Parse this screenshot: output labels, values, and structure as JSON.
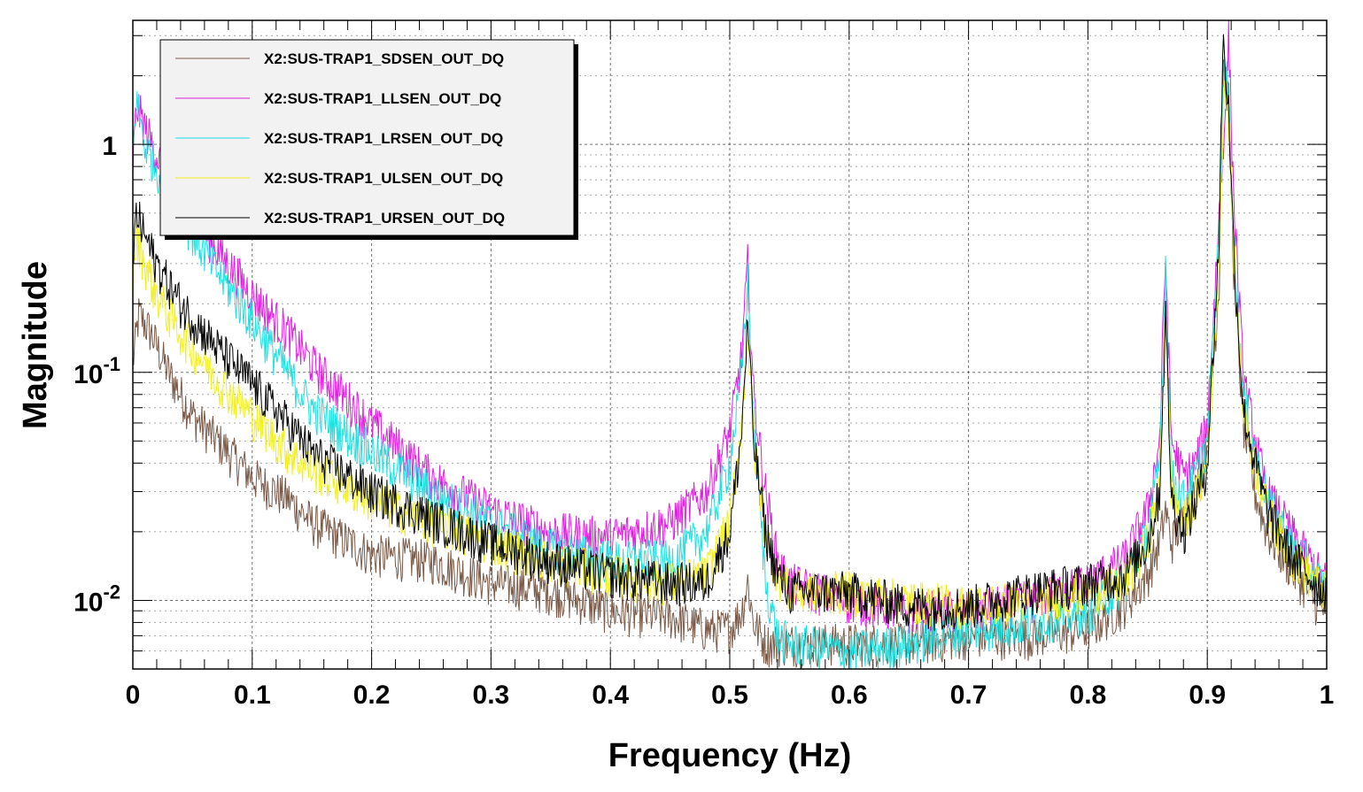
{
  "chart_data": {
    "type": "line",
    "xlabel": "Frequency (Hz)",
    "ylabel": "Magnitude",
    "xlim": [
      0,
      1
    ],
    "ylim": [
      0.005,
      3.5
    ],
    "yscale": "log",
    "grid": true,
    "legend_position": "top-left",
    "x_ticks": [
      {
        "value": 0,
        "label": "0"
      },
      {
        "value": 0.1,
        "label": "0.1"
      },
      {
        "value": 0.2,
        "label": "0.2"
      },
      {
        "value": 0.3,
        "label": "0.3"
      },
      {
        "value": 0.4,
        "label": "0.4"
      },
      {
        "value": 0.5,
        "label": "0.5"
      },
      {
        "value": 0.6,
        "label": "0.6"
      },
      {
        "value": 0.7,
        "label": "0.7"
      },
      {
        "value": 0.8,
        "label": "0.8"
      },
      {
        "value": 0.9,
        "label": "0.9"
      },
      {
        "value": 1,
        "label": "1"
      }
    ],
    "y_ticks": [
      {
        "value": 0.01,
        "base": "10",
        "exp": "-2"
      },
      {
        "value": 0.1,
        "base": "10",
        "exp": "-1"
      },
      {
        "value": 1,
        "base": "1",
        "exp": ""
      }
    ],
    "series": [
      {
        "name": "X2:SUS-TRAP1_SDSEN_OUT_DQ",
        "color": "#7a5a48",
        "x": [
          0,
          0.005,
          0.015,
          0.03,
          0.05,
          0.08,
          0.1,
          0.13,
          0.15,
          0.2,
          0.25,
          0.3,
          0.35,
          0.4,
          0.45,
          0.48,
          0.5,
          0.51,
          0.515,
          0.52,
          0.53,
          0.55,
          0.6,
          0.65,
          0.7,
          0.75,
          0.8,
          0.83,
          0.85,
          0.86,
          0.865,
          0.87,
          0.88,
          0.89,
          0.9,
          0.91,
          0.913,
          0.918,
          0.922,
          0.93,
          0.94,
          0.95,
          0.97,
          0.99,
          1
        ],
        "y": [
          0.11,
          0.18,
          0.15,
          0.1,
          0.065,
          0.045,
          0.035,
          0.028,
          0.022,
          0.016,
          0.015,
          0.012,
          0.011,
          0.009,
          0.0085,
          0.0075,
          0.0075,
          0.009,
          0.012,
          0.008,
          0.0065,
          0.0065,
          0.0065,
          0.0065,
          0.007,
          0.007,
          0.0075,
          0.0095,
          0.013,
          0.018,
          0.025,
          0.018,
          0.023,
          0.03,
          0.05,
          0.25,
          2.5,
          1.5,
          0.3,
          0.06,
          0.03,
          0.02,
          0.014,
          0.01,
          0.009
        ]
      },
      {
        "name": "X2:SUS-TRAP1_LLSEN_OUT_DQ",
        "color": "#e020e0",
        "x": [
          0,
          0.003,
          0.01,
          0.02,
          0.04,
          0.07,
          0.1,
          0.13,
          0.15,
          0.2,
          0.25,
          0.3,
          0.35,
          0.4,
          0.45,
          0.48,
          0.5,
          0.51,
          0.515,
          0.52,
          0.53,
          0.54,
          0.55,
          0.6,
          0.65,
          0.7,
          0.75,
          0.8,
          0.83,
          0.85,
          0.86,
          0.865,
          0.87,
          0.88,
          0.89,
          0.9,
          0.91,
          0.915,
          0.918,
          0.922,
          0.93,
          0.94,
          0.95,
          0.97,
          0.99,
          1
        ],
        "y": [
          0.8,
          1.5,
          1.2,
          0.9,
          0.6,
          0.35,
          0.22,
          0.15,
          0.11,
          0.06,
          0.035,
          0.025,
          0.02,
          0.019,
          0.022,
          0.03,
          0.055,
          0.12,
          0.3,
          0.08,
          0.03,
          0.015,
          0.012,
          0.01,
          0.009,
          0.009,
          0.01,
          0.012,
          0.015,
          0.025,
          0.05,
          0.33,
          0.05,
          0.035,
          0.04,
          0.06,
          0.5,
          1.5,
          3.0,
          0.6,
          0.1,
          0.05,
          0.03,
          0.02,
          0.014,
          0.012
        ]
      },
      {
        "name": "X2:SUS-TRAP1_LRSEN_OUT_DQ",
        "color": "#20e0e0",
        "x": [
          0,
          0.003,
          0.01,
          0.02,
          0.04,
          0.07,
          0.1,
          0.13,
          0.15,
          0.2,
          0.25,
          0.3,
          0.35,
          0.4,
          0.45,
          0.48,
          0.5,
          0.51,
          0.515,
          0.52,
          0.53,
          0.54,
          0.55,
          0.6,
          0.65,
          0.7,
          0.75,
          0.8,
          0.83,
          0.85,
          0.86,
          0.865,
          0.87,
          0.88,
          0.89,
          0.9,
          0.91,
          0.914,
          0.918,
          0.922,
          0.93,
          0.94,
          0.95,
          0.97,
          0.99,
          1
        ],
        "y": [
          0.9,
          1.6,
          1.0,
          0.8,
          0.5,
          0.28,
          0.17,
          0.1,
          0.07,
          0.045,
          0.03,
          0.022,
          0.017,
          0.015,
          0.015,
          0.02,
          0.04,
          0.1,
          0.25,
          0.06,
          0.012,
          0.007,
          0.0065,
          0.006,
          0.0065,
          0.0075,
          0.008,
          0.009,
          0.012,
          0.02,
          0.04,
          0.3,
          0.035,
          0.028,
          0.035,
          0.05,
          0.4,
          2.8,
          1.5,
          0.4,
          0.08,
          0.045,
          0.028,
          0.018,
          0.013,
          0.011
        ]
      },
      {
        "name": "X2:SUS-TRAP1_ULSEN_OUT_DQ",
        "color": "#f0f020",
        "x": [
          0,
          0.003,
          0.01,
          0.02,
          0.04,
          0.07,
          0.1,
          0.13,
          0.15,
          0.2,
          0.25,
          0.3,
          0.35,
          0.4,
          0.45,
          0.48,
          0.5,
          0.51,
          0.515,
          0.52,
          0.53,
          0.54,
          0.55,
          0.6,
          0.65,
          0.7,
          0.75,
          0.8,
          0.83,
          0.85,
          0.86,
          0.865,
          0.87,
          0.88,
          0.89,
          0.9,
          0.91,
          0.914,
          0.918,
          0.922,
          0.93,
          0.94,
          0.95,
          0.97,
          0.99,
          1
        ],
        "y": [
          0.25,
          0.4,
          0.3,
          0.22,
          0.15,
          0.095,
          0.065,
          0.045,
          0.038,
          0.028,
          0.022,
          0.018,
          0.015,
          0.013,
          0.012,
          0.013,
          0.022,
          0.06,
          0.15,
          0.05,
          0.02,
          0.013,
          0.011,
          0.011,
          0.01,
          0.0095,
          0.01,
          0.011,
          0.012,
          0.018,
          0.03,
          0.2,
          0.03,
          0.022,
          0.028,
          0.04,
          0.3,
          2.0,
          1.3,
          0.35,
          0.07,
          0.04,
          0.025,
          0.016,
          0.012,
          0.011
        ]
      },
      {
        "name": "X2:SUS-TRAP1_URSEN_OUT_DQ",
        "color": "#000000",
        "x": [
          0,
          0.003,
          0.01,
          0.02,
          0.04,
          0.07,
          0.1,
          0.13,
          0.15,
          0.2,
          0.25,
          0.3,
          0.35,
          0.4,
          0.45,
          0.48,
          0.5,
          0.51,
          0.515,
          0.52,
          0.53,
          0.54,
          0.55,
          0.6,
          0.65,
          0.7,
          0.75,
          0.8,
          0.83,
          0.85,
          0.86,
          0.865,
          0.87,
          0.88,
          0.89,
          0.9,
          0.91,
          0.913,
          0.918,
          0.922,
          0.93,
          0.94,
          0.95,
          0.97,
          0.99,
          1
        ],
        "y": [
          0.3,
          0.5,
          0.4,
          0.3,
          0.2,
          0.13,
          0.09,
          0.06,
          0.045,
          0.03,
          0.023,
          0.018,
          0.015,
          0.013,
          0.012,
          0.012,
          0.02,
          0.055,
          0.17,
          0.05,
          0.02,
          0.013,
          0.011,
          0.011,
          0.0095,
          0.0095,
          0.011,
          0.012,
          0.013,
          0.018,
          0.03,
          0.18,
          0.028,
          0.02,
          0.027,
          0.04,
          0.4,
          3.0,
          1.4,
          0.35,
          0.07,
          0.04,
          0.025,
          0.016,
          0.012,
          0.011
        ]
      }
    ]
  }
}
